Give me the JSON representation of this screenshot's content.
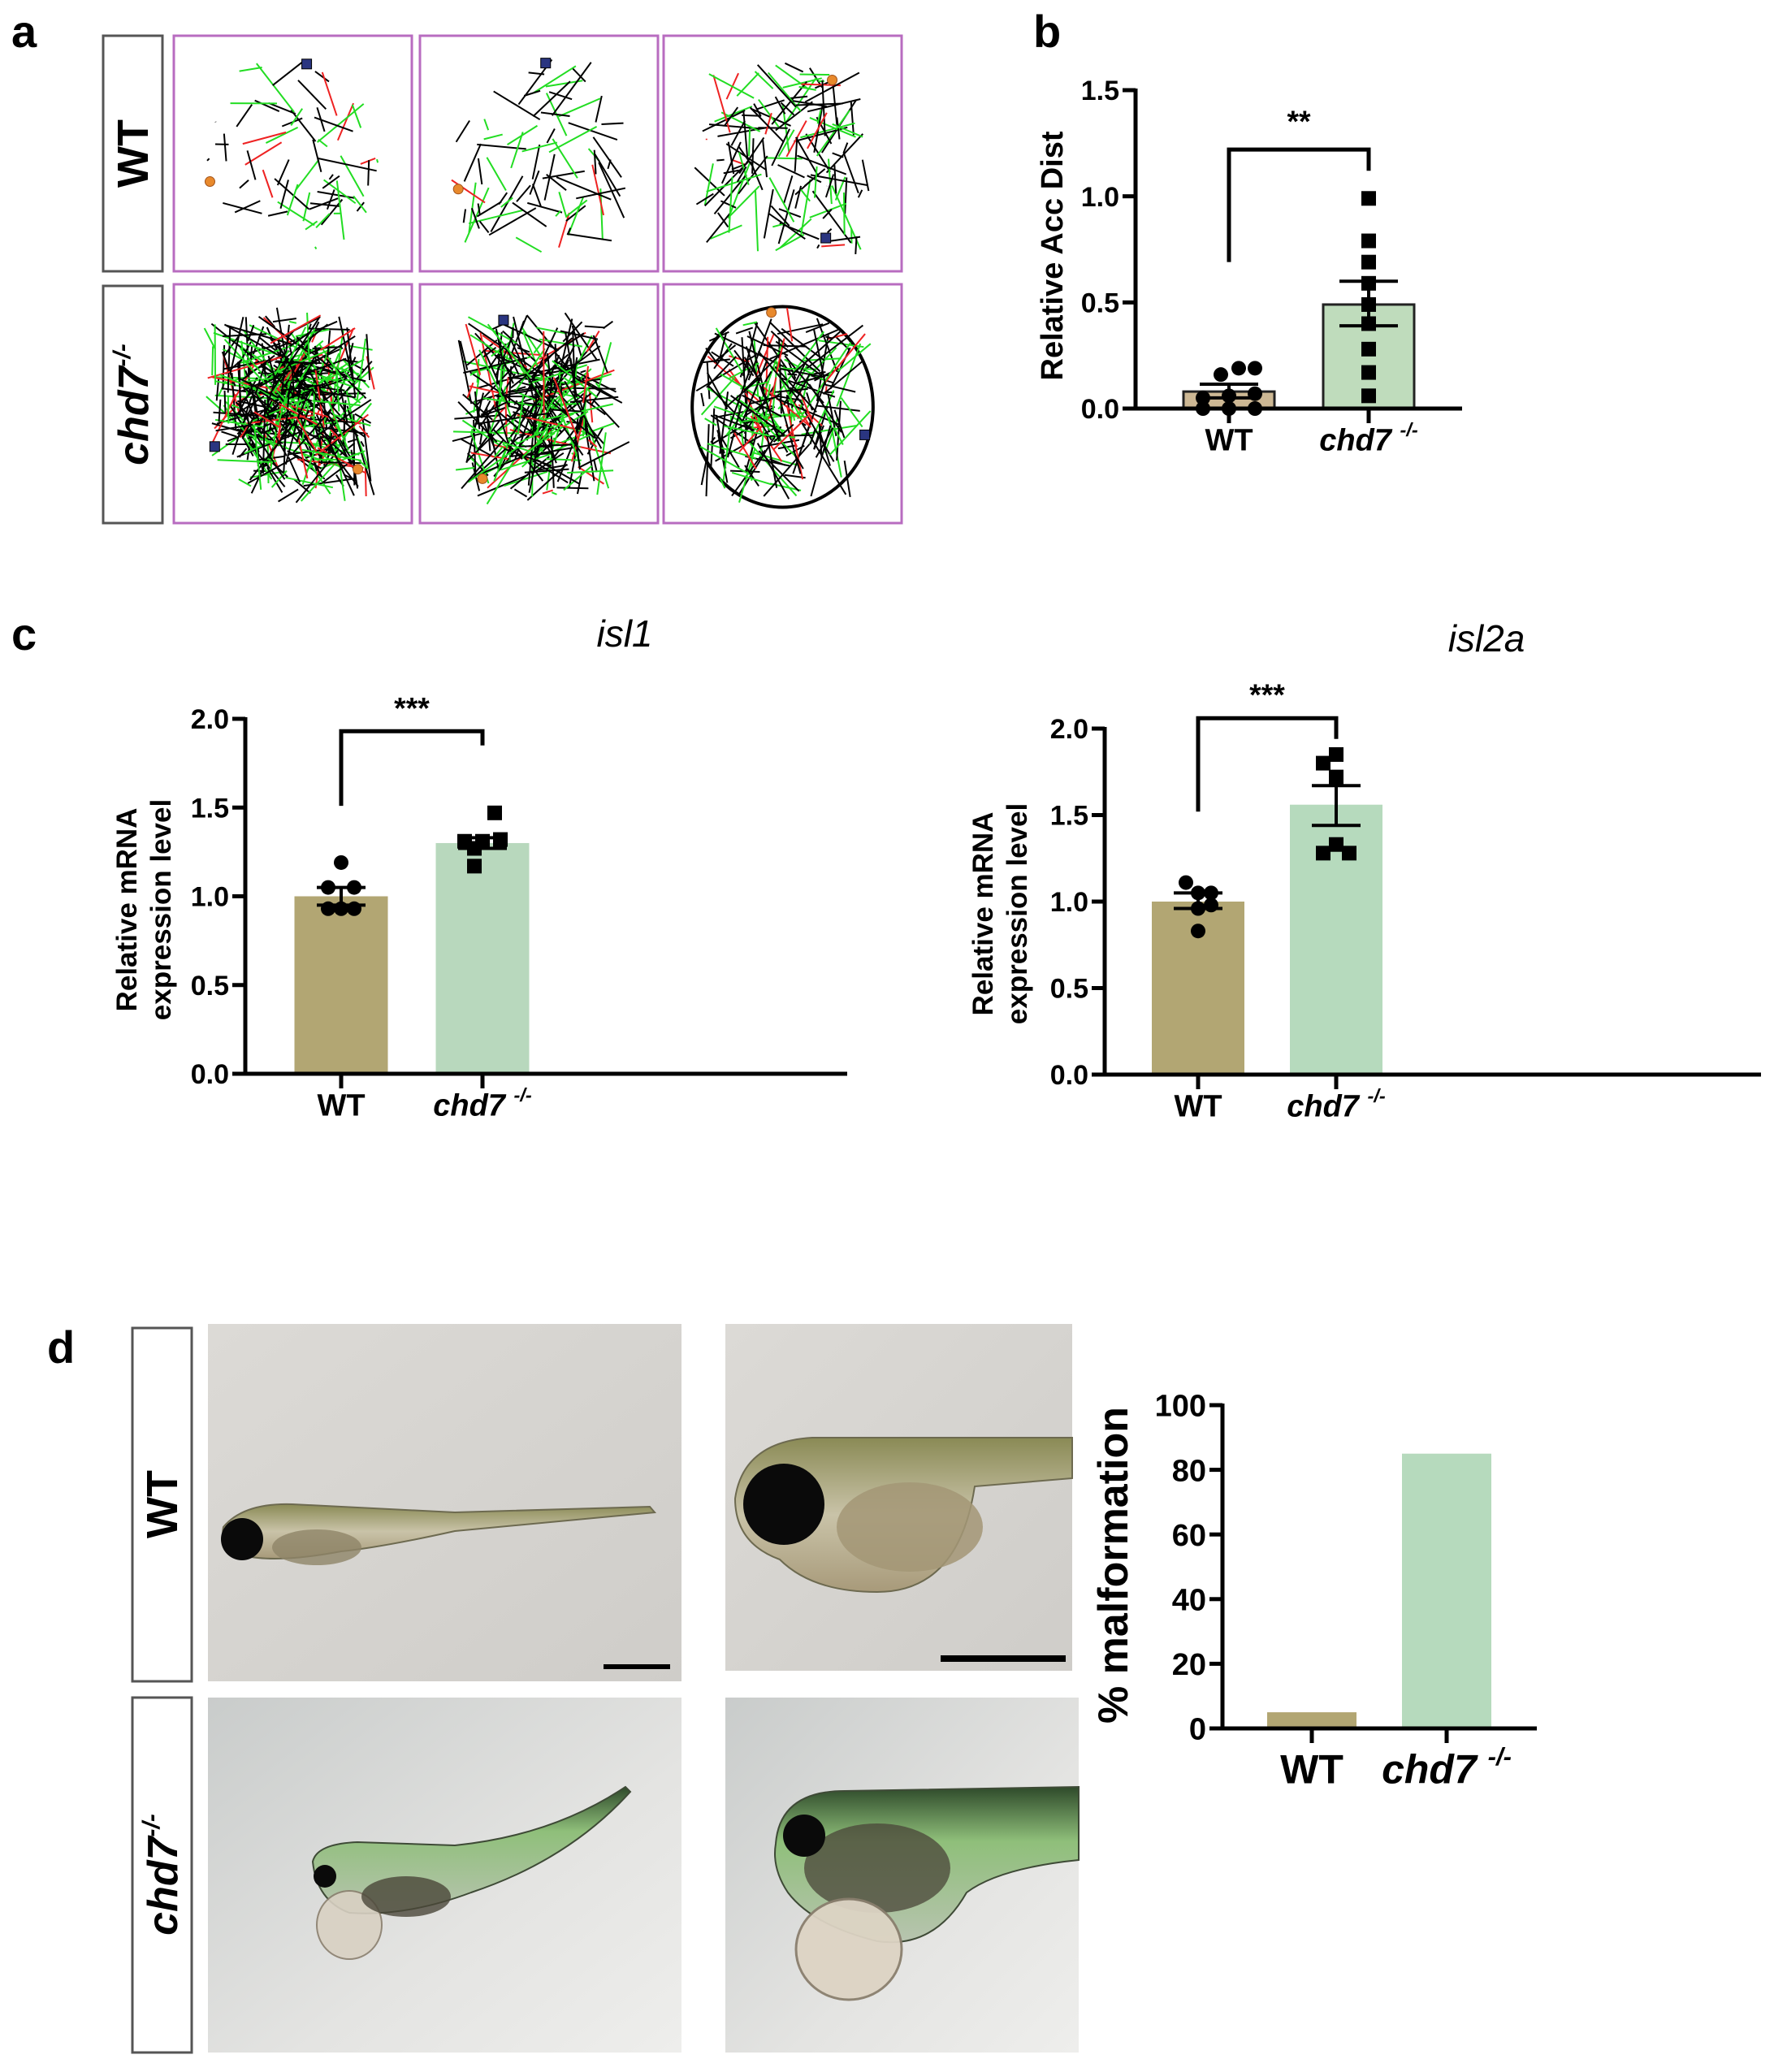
{
  "panel_labels": {
    "a": "a",
    "b": "b",
    "c": "c",
    "d": "d"
  },
  "panel_a": {
    "row_labels": [
      "WT",
      "chd7",
      "-/-"
    ],
    "colors": {
      "track_slow": "#000000",
      "track_medium": "#22dd22",
      "track_fast": "#ee2222",
      "frame": "#b86cc0",
      "start_marker": "#e8892c",
      "end_marker": "#2a3580"
    }
  },
  "panel_d": {
    "row_labels": [
      "WT",
      "chd7",
      "-/-"
    ]
  },
  "chart_data": [
    {
      "id": "b",
      "type": "bar",
      "title": "",
      "ylabel": "Relative Acc Dist",
      "categories": [
        "WT",
        "chd7 -/-"
      ],
      "values": [
        0.08,
        0.49
      ],
      "sem": [
        [
          0.05,
          0.115
        ],
        [
          0.39,
          0.6
        ]
      ],
      "points": [
        [
          0.0,
          0.0,
          0.0,
          0.05,
          0.06,
          0.07,
          0.16,
          0.19,
          0.19
        ],
        [
          0.99,
          0.79,
          0.69,
          0.59,
          0.49,
          0.4,
          0.28,
          0.17,
          0.06
        ]
      ],
      "ylim": [
        0,
        1.5
      ],
      "yticks": [
        "0.0",
        "0.5",
        "1.0",
        "1.5"
      ],
      "significance": "**",
      "colors": [
        "#cdb894",
        "#bfdcbc"
      ]
    },
    {
      "id": "c-isl1",
      "type": "bar",
      "title": "isl1",
      "ylabel": [
        "Relative mRNA",
        "expression level"
      ],
      "categories": [
        "WT",
        "chd7 -/-"
      ],
      "values": [
        1.0,
        1.3
      ],
      "sem": [
        [
          0.95,
          1.05
        ],
        [
          1.27,
          1.33
        ]
      ],
      "points": [
        [
          1.19,
          1.05,
          1.05,
          0.93,
          0.93,
          0.93
        ],
        [
          1.47,
          1.31,
          1.32,
          1.31,
          1.27,
          1.17
        ]
      ],
      "ylim": [
        0,
        2.0
      ],
      "yticks": [
        "0.0",
        "0.5",
        "1.0",
        "1.5",
        "2.0"
      ],
      "significance": "***",
      "colors": [
        "#b2a673",
        "#b8d8bd"
      ]
    },
    {
      "id": "c-isl2a",
      "type": "bar",
      "title": "isl2a",
      "ylabel": [
        "Relative mRNA",
        "expression level"
      ],
      "categories": [
        "WT",
        "chd7 -/-"
      ],
      "values": [
        1.0,
        1.56
      ],
      "sem": [
        [
          0.96,
          1.05
        ],
        [
          1.44,
          1.67
        ]
      ],
      "points": [
        [
          1.11,
          1.05,
          1.05,
          0.98,
          0.96,
          0.83
        ],
        [
          1.85,
          1.8,
          1.72,
          1.33,
          1.28,
          1.28
        ]
      ],
      "ylim": [
        0,
        2.0
      ],
      "yticks": [
        "0.0",
        "0.5",
        "1.0",
        "1.5",
        "2.0"
      ],
      "significance": "***",
      "colors": [
        "#b2a673",
        "#b6dabd"
      ]
    },
    {
      "id": "d",
      "type": "bar",
      "title": "",
      "ylabel": "% malformation",
      "categories": [
        "WT",
        "chd7 -/-"
      ],
      "values": [
        5,
        85
      ],
      "ylim": [
        0,
        100
      ],
      "yticks": [
        "0",
        "20",
        "40",
        "60",
        "80",
        "100"
      ],
      "colors": [
        "#b2a673",
        "#b6dabd"
      ]
    }
  ]
}
